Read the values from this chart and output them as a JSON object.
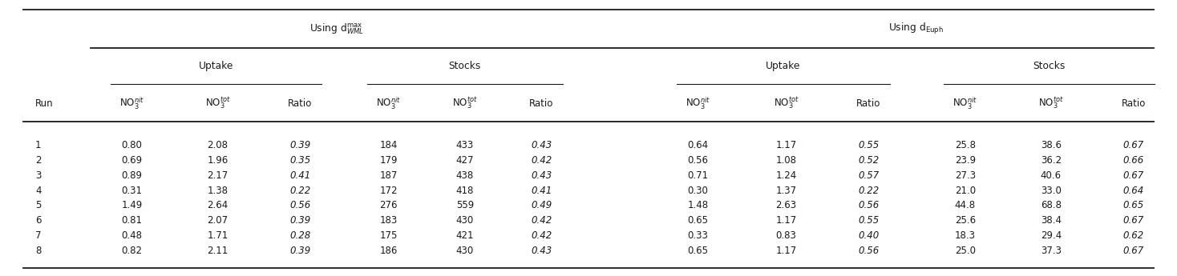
{
  "section1_header": "Using d$^{\\mathrm{max}}_{WML}$",
  "section2_header": "Using d$_{\\mathrm{Euph}}$",
  "uptake_label": "Uptake",
  "stocks_label": "Stocks",
  "col_run": "Run",
  "col_no3nit": "NO$_3^{nit}$",
  "col_no3tot": "NO$_3^{tot}$",
  "col_ratio": "Ratio",
  "rows": [
    {
      "run": "1",
      "u1_nit": "0.80",
      "u1_tot": "2.08",
      "u1_ratio": "0.39",
      "s1_nit": "184",
      "s1_tot": "433",
      "s1_ratio": "0.43",
      "u2_nit": "0.64",
      "u2_tot": "1.17",
      "u2_ratio": "0.55",
      "s2_nit": "25.8",
      "s2_tot": "38.6",
      "s2_ratio": "0.67"
    },
    {
      "run": "2",
      "u1_nit": "0.69",
      "u1_tot": "1.96",
      "u1_ratio": "0.35",
      "s1_nit": "179",
      "s1_tot": "427",
      "s1_ratio": "0.42",
      "u2_nit": "0.56",
      "u2_tot": "1.08",
      "u2_ratio": "0.52",
      "s2_nit": "23.9",
      "s2_tot": "36.2",
      "s2_ratio": "0.66"
    },
    {
      "run": "3",
      "u1_nit": "0.89",
      "u1_tot": "2.17",
      "u1_ratio": "0.41",
      "s1_nit": "187",
      "s1_tot": "438",
      "s1_ratio": "0.43",
      "u2_nit": "0.71",
      "u2_tot": "1.24",
      "u2_ratio": "0.57",
      "s2_nit": "27.3",
      "s2_tot": "40.6",
      "s2_ratio": "0.67"
    },
    {
      "run": "4",
      "u1_nit": "0.31",
      "u1_tot": "1.38",
      "u1_ratio": "0.22",
      "s1_nit": "172",
      "s1_tot": "418",
      "s1_ratio": "0.41",
      "u2_nit": "0.30",
      "u2_tot": "1.37",
      "u2_ratio": "0.22",
      "s2_nit": "21.0",
      "s2_tot": "33.0",
      "s2_ratio": "0.64"
    },
    {
      "run": "5",
      "u1_nit": "1.49",
      "u1_tot": "2.64",
      "u1_ratio": "0.56",
      "s1_nit": "276",
      "s1_tot": "559",
      "s1_ratio": "0.49",
      "u2_nit": "1.48",
      "u2_tot": "2.63",
      "u2_ratio": "0.56",
      "s2_nit": "44.8",
      "s2_tot": "68.8",
      "s2_ratio": "0.65"
    },
    {
      "run": "6",
      "u1_nit": "0.81",
      "u1_tot": "2.07",
      "u1_ratio": "0.39",
      "s1_nit": "183",
      "s1_tot": "430",
      "s1_ratio": "0.42",
      "u2_nit": "0.65",
      "u2_tot": "1.17",
      "u2_ratio": "0.55",
      "s2_nit": "25.6",
      "s2_tot": "38.4",
      "s2_ratio": "0.67"
    },
    {
      "run": "7",
      "u1_nit": "0.48",
      "u1_tot": "1.71",
      "u1_ratio": "0.28",
      "s1_nit": "175",
      "s1_tot": "421",
      "s1_ratio": "0.42",
      "u2_nit": "0.33",
      "u2_tot": "0.83",
      "u2_ratio": "0.40",
      "s2_nit": "18.3",
      "s2_tot": "29.4",
      "s2_ratio": "0.62"
    },
    {
      "run": "8",
      "u1_nit": "0.82",
      "u1_tot": "2.11",
      "u1_ratio": "0.39",
      "s1_nit": "186",
      "s1_tot": "430",
      "s1_ratio": "0.43",
      "u2_nit": "0.65",
      "u2_tot": "1.17",
      "u2_ratio": "0.56",
      "s2_nit": "25.0",
      "s2_tot": "37.3",
      "s2_ratio": "0.67"
    }
  ],
  "bg_color": "#ffffff",
  "text_color": "#1a1a1a",
  "line_color": "#1a1a1a",
  "fontsize": 8.5,
  "header_fontsize": 8.8,
  "fig_width": 14.68,
  "fig_height": 3.45,
  "dpi": 100
}
